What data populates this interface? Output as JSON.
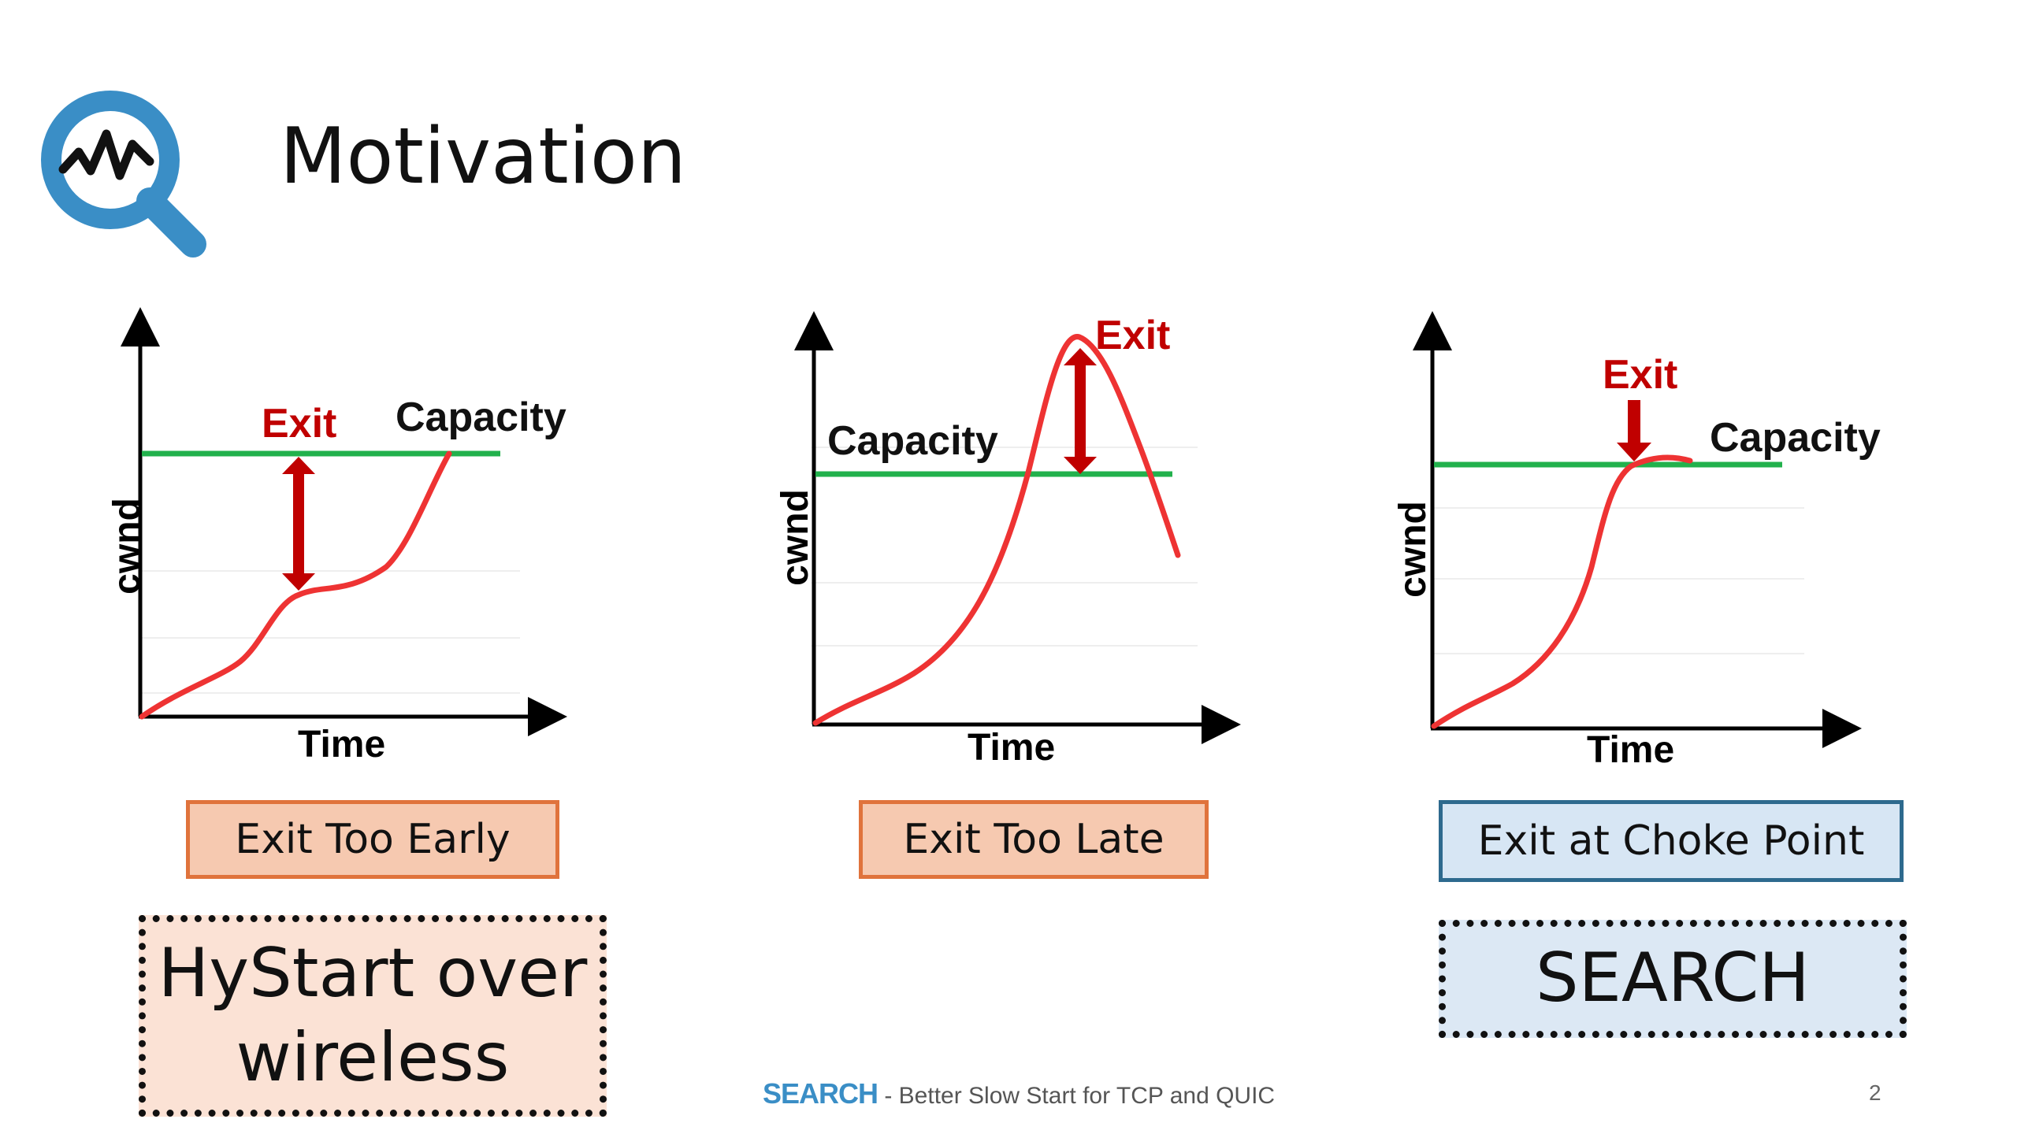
{
  "slide": {
    "title": "Motivation",
    "logo_icon": "magnifier-pulse-icon",
    "accent_color": "#3a8ec6"
  },
  "panels": [
    {
      "id": "early",
      "ylabel": "cwnd",
      "xlabel": "Time",
      "capacity_label": "Capacity",
      "exit_label": "Exit",
      "result_label": "Exit Too Early",
      "algorithm_label_line1": "HyStart over",
      "algorithm_label_line2": "wireless"
    },
    {
      "id": "late",
      "ylabel": "cwnd",
      "xlabel": "Time",
      "capacity_label": "Capacity",
      "exit_label": "Exit",
      "result_label": "Exit Too Late"
    },
    {
      "id": "choke",
      "ylabel": "cwnd",
      "xlabel": "Time",
      "capacity_label": "Capacity",
      "exit_label": "Exit",
      "result_label": "Exit at Choke Point",
      "algorithm_label_line1": "SEARCH"
    }
  ],
  "colors": {
    "capacity_line": "#22b14c",
    "cwnd_curve": "#ee3333",
    "exit_arrow": "#c00000",
    "bad_box_fill": "#f6c9b0",
    "bad_box_border": "#e0733c",
    "good_box_fill": "#d7e6f4",
    "good_box_border": "#2e6a8e"
  },
  "footer": {
    "brand": "SEARCH",
    "subtitle": " - Better Slow Start for TCP and QUIC",
    "page_number": "2"
  }
}
